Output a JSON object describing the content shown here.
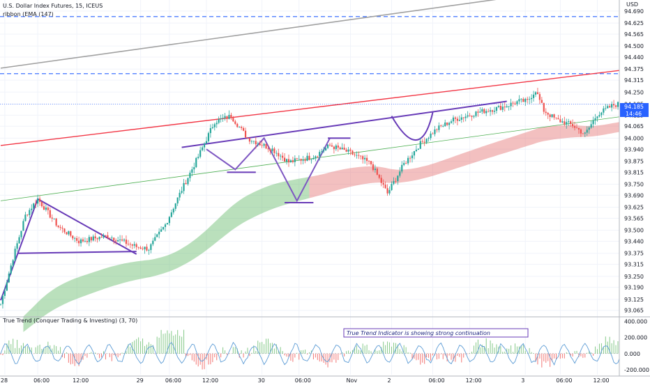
{
  "header": {
    "symbol_title": "U.S. Dollar Index Futures, 15, ICEUS",
    "indicator_line": "ribbon (EMA (147)",
    "currency": "USD"
  },
  "price_badges": {
    "last_price": "94.185",
    "countdown": "14:46"
  },
  "oscillator": {
    "title": "True Trend (Conquer Trading & Investing) (3, 70)",
    "note": "True Trend Indicator is showing strong continuation",
    "ticks": [
      "400.000",
      "200.000",
      "0.000",
      "-200.000"
    ]
  },
  "colors": {
    "up": "#26a69a",
    "down": "#ef5350",
    "accent": "#2962ff",
    "pattern": "#673ab7",
    "red_line": "#f23645",
    "green_line": "#4caf50"
  },
  "chart_data": [
    {
      "type": "candlestick",
      "title": "U.S. Dollar Index Futures, 15, ICEUS",
      "ylabel": "USD",
      "ylim": [
        93.03,
        94.75
      ],
      "y_ticks": [
        "94.690",
        "94.625",
        "94.565",
        "94.500",
        "94.440",
        "94.375",
        "94.315",
        "94.250",
        "94.185",
        "94.125",
        "94.065",
        "94.000",
        "93.940",
        "93.875",
        "93.815",
        "93.750",
        "93.690",
        "93.625",
        "93.565",
        "93.500",
        "93.440",
        "93.375",
        "93.315",
        "93.250",
        "93.190",
        "93.125",
        "93.065"
      ],
      "x_ticks": [
        "28",
        "06:00",
        "12:00",
        "29",
        "06:00",
        "12:00",
        "30",
        "06:00",
        "Nov",
        "2",
        "06:00",
        "12:00",
        "3",
        "06:00",
        "12:00"
      ],
      "close_keypoints": [
        [
          0,
          93.1
        ],
        [
          6,
          93.35
        ],
        [
          12,
          93.58
        ],
        [
          18,
          93.67
        ],
        [
          28,
          93.52
        ],
        [
          38,
          93.44
        ],
        [
          52,
          93.47
        ],
        [
          66,
          93.41
        ],
        [
          72,
          93.4
        ],
        [
          80,
          93.53
        ],
        [
          88,
          93.72
        ],
        [
          96,
          93.9
        ],
        [
          104,
          94.09
        ],
        [
          112,
          94.12
        ],
        [
          120,
          94.0
        ],
        [
          132,
          93.94
        ],
        [
          140,
          93.87
        ],
        [
          152,
          93.9
        ],
        [
          160,
          93.96
        ],
        [
          170,
          93.92
        ],
        [
          180,
          93.86
        ],
        [
          188,
          93.7
        ],
        [
          196,
          93.86
        ],
        [
          204,
          93.97
        ],
        [
          212,
          94.05
        ],
        [
          220,
          94.1
        ],
        [
          232,
          94.14
        ],
        [
          244,
          94.17
        ],
        [
          252,
          94.2
        ],
        [
          256,
          94.2
        ],
        [
          260,
          94.26
        ],
        [
          264,
          94.15
        ],
        [
          270,
          94.1
        ],
        [
          278,
          94.07
        ],
        [
          284,
          94.02
        ],
        [
          290,
          94.13
        ],
        [
          298,
          94.18
        ],
        [
          303,
          94.19
        ]
      ],
      "last_price": 94.185,
      "series": [
        {
          "values_type": "OHLC candles",
          "colors": [
            "#26a69a",
            "#ef5350"
          ]
        },
        {
          "name": "ribbon (EMA (147)",
          "values_type": "moving-average band"
        }
      ],
      "annotations": {
        "dashed_levels": [
          94.66,
          94.35
        ],
        "grey_channel_line": {
          "from": [
            0,
            94.38
          ],
          "to": [
            310,
            94.86
          ]
        },
        "red_trendline": {
          "from": [
            0,
            93.96
          ],
          "to": [
            310,
            94.38
          ]
        },
        "green_trendline": {
          "from": [
            0,
            93.66
          ],
          "to": [
            310,
            94.13
          ]
        },
        "purple_neckline": {
          "from": [
            88,
            93.95
          ],
          "to": [
            246,
            94.2
          ]
        },
        "triangle_top": [
          18,
          93.67
        ],
        "triangle_base": {
          "from": [
            8,
            93.375
          ],
          "to": [
            66,
            93.385
          ]
        }
      },
      "grid": true
    },
    {
      "type": "line",
      "title": "True Trend (Conquer Trading & Investing) (3, 70)",
      "ylim": [
        -260,
        420
      ],
      "y_ticks": [
        "400.000",
        "200.000",
        "0.000",
        "-200.000"
      ],
      "note": "oscillating histogram (green above zero, red below) with blue signal line"
    }
  ]
}
